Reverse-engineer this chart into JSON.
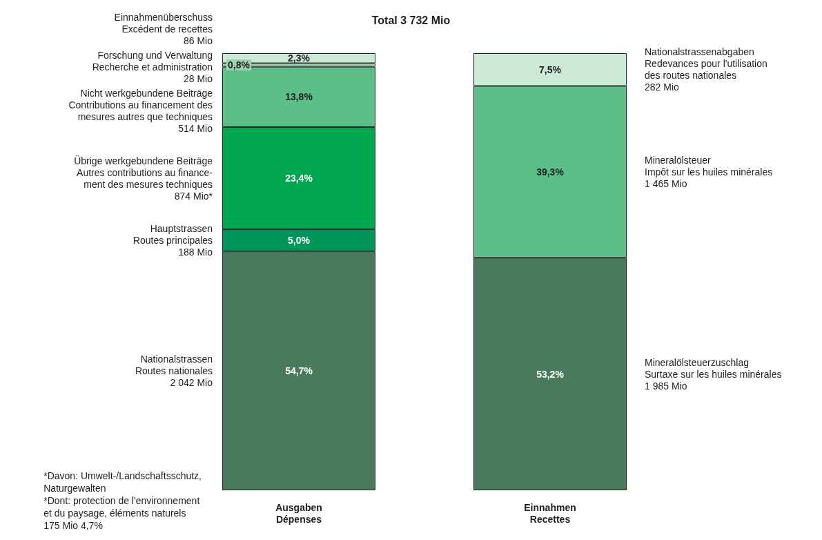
{
  "chart_data": {
    "type": "bar",
    "stacked": true,
    "title": "Total 3 732 Mio",
    "categories": [
      "Ausgaben\nDépenses",
      "Einnahmen\nRecettes"
    ],
    "series": [
      {
        "name": "Nationalstrassen\nRoutes nationales\n2 042 Mio",
        "color": "#4a7a5c",
        "values": [
          54.7,
          null
        ],
        "value_labels": [
          "54,7%",
          null
        ]
      },
      {
        "name": "Hauptstrassen\nRoutes principales\n188 Mio",
        "color": "#00955a",
        "values": [
          5.0,
          null
        ],
        "value_labels": [
          "5,0%",
          null
        ]
      },
      {
        "name": "Übrige werkgebundene Beiträge\nAutres contributions au finance-\nment des mesures techniques\n874 Mio*",
        "color": "#00a650",
        "values": [
          23.4,
          null
        ],
        "value_labels": [
          "23,4%",
          null
        ]
      },
      {
        "name": "Nicht werkgebundene Beiträge\nContributions au financement des\nmesures autres que techniques\n514 Mio",
        "color": "#5bbf87",
        "values": [
          13.8,
          null
        ],
        "value_labels": [
          "13,8%",
          null
        ]
      },
      {
        "name": "Forschung und Verwaltung\nRecherche et administration\n28 Mio",
        "color": "#9fd3b2",
        "values": [
          0.8,
          null
        ],
        "value_labels": [
          "0,8%",
          null
        ]
      },
      {
        "name": "Einnahmenüberschuss\nExcédent de recettes\n86 Mio",
        "color": "#cce8d6",
        "values": [
          2.3,
          null
        ],
        "value_labels": [
          "2,3%",
          null
        ]
      },
      {
        "name": "Mineralölsteuerzuschlag\nSurtaxe sur les huiles minérales\n1 985 Mio",
        "color": "#4a7a5c",
        "values": [
          null,
          53.2
        ],
        "value_labels": [
          null,
          "53,2%"
        ]
      },
      {
        "name": "Mineralölsteuer\nImpôt sur les huiles minérales\n1 465 Mio",
        "color": "#5bbf87",
        "values": [
          null,
          39.3
        ],
        "value_labels": [
          null,
          "39,3%"
        ]
      },
      {
        "name": "Nationalstrassenabgaben\nRedevances pour l'utilisation\ndes routes nationales\n282 Mio",
        "color": "#cce8d6",
        "values": [
          null,
          7.5
        ],
        "value_labels": [
          null,
          "7,5%"
        ]
      }
    ],
    "annotations": [
      "*Davon: Umwelt-/Landschaftsschutz,\nNaturgewalten\n*Dont: protection de l'environnement\net du paysage, éléments naturels\n175 Mio 4,7%"
    ]
  }
}
